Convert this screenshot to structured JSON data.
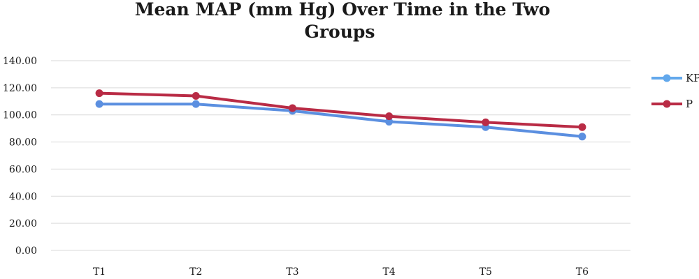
{
  "chart_data": {
    "type": "line",
    "title_lines": [
      "Mean MAP (mm Hg) Over Time in the Two",
      "Groups"
    ],
    "categories": [
      "T1",
      "T2",
      "T3",
      "T4",
      "T5",
      "T6"
    ],
    "ylim": [
      0,
      140
    ],
    "yticks": [
      "0.00",
      "20.00",
      "40.00",
      "60.00",
      "80.00",
      "100.00",
      "120.00",
      "140.00"
    ],
    "ytick_values": [
      0,
      20,
      40,
      60,
      80,
      100,
      120,
      140
    ],
    "grid": true,
    "legend_position": "right",
    "series": [
      {
        "name": "KP",
        "color": "#5b8fe0",
        "legend_color": "#62a8ec",
        "values": [
          108,
          108,
          103,
          95,
          91,
          84
        ]
      },
      {
        "name": "P",
        "color": "#b92b45",
        "legend_color": "#b92b45",
        "values": [
          116,
          114,
          105,
          99,
          94.5,
          91
        ]
      }
    ]
  }
}
